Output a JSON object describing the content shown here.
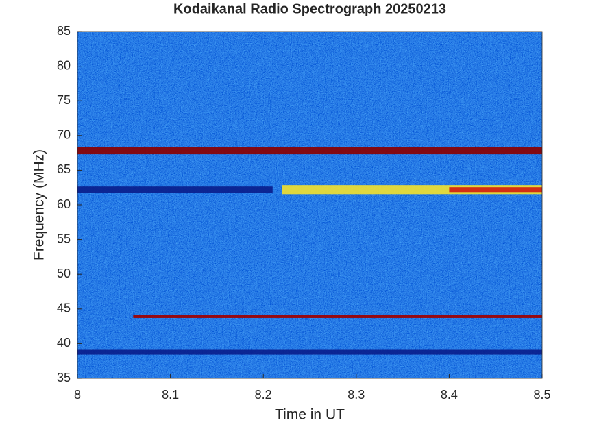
{
  "chart_data": {
    "type": "spectrogram",
    "title": "Kodaikanal Radio Spectrograph  20250213",
    "x_label": "Time in UT",
    "y_label": "Frequency (MHz)",
    "xlim": [
      8,
      8.5
    ],
    "ylim": [
      35,
      85
    ],
    "xticks": [
      8,
      8.1,
      8.2,
      8.3,
      8.4,
      8.5
    ],
    "yticks": [
      35,
      40,
      45,
      50,
      55,
      60,
      65,
      70,
      75,
      80,
      85
    ],
    "background_color": "#1238b8",
    "bands": [
      {
        "y": 67.8,
        "height": 1.0,
        "x": [
          8,
          8.5
        ],
        "color": "#8b0000"
      },
      {
        "y": 62.2,
        "height": 0.9,
        "x": [
          8,
          8.21
        ],
        "color": "#0a1e8c"
      },
      {
        "y": 62.2,
        "height": 1.3,
        "x": [
          8.22,
          8.5
        ],
        "color": "#f0e030"
      },
      {
        "y": 62.2,
        "height": 0.7,
        "x": [
          8.4,
          8.5
        ],
        "color": "#d02010"
      },
      {
        "y": 43.9,
        "height": 0.4,
        "x": [
          8.06,
          8.5
        ],
        "color": "#a00000"
      },
      {
        "y": 38.8,
        "height": 0.8,
        "x": [
          8,
          8.5
        ],
        "color": "#0a1e8c"
      }
    ]
  }
}
